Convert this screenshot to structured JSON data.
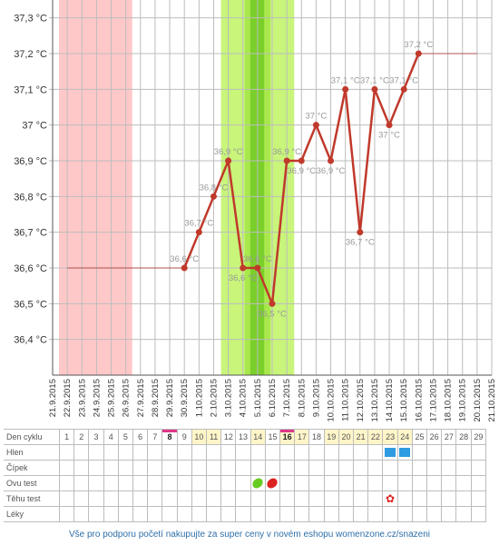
{
  "chart_data": {
    "type": "line",
    "ylim": [
      36.3,
      37.35
    ],
    "y_ticks": [
      36.4,
      36.5,
      36.6,
      36.7,
      36.8,
      36.9,
      37.0,
      37.1,
      37.2,
      37.3
    ],
    "y_tick_labels": [
      "36,4 °C",
      "36,5 °C",
      "36,6 °C",
      "36,7 °C",
      "36,8 °C",
      "36,9 °C",
      "37 °C",
      "37,1 °C",
      "37,2 °C",
      "37,3 °C"
    ],
    "x": [
      "21.9.2015",
      "22.9.2015",
      "23.9.2015",
      "24.9.2015",
      "25.9.2015",
      "26.9.2015",
      "27.9.2015",
      "28.9.2015",
      "29.9.2015",
      "30.9.2015",
      "1.10.2015",
      "2.10.2015",
      "3.10.2015",
      "4.10.2015",
      "5.10.2015",
      "6.10.2015",
      "7.10.2015",
      "8.10.2015",
      "9.10.2015",
      "10.10.2015",
      "11.10.2015",
      "12.10.2015",
      "13.10.2015",
      "14.10.2015",
      "15.10.2015",
      "16.10.2015",
      "17.10.2015",
      "18.10.2015",
      "19.10.2015",
      "20.10.2015",
      "21.10.2015"
    ],
    "series": [
      {
        "values": [
          null,
          null,
          null,
          null,
          null,
          null,
          null,
          null,
          null,
          36.6,
          36.7,
          36.8,
          36.9,
          36.6,
          36.6,
          36.5,
          36.9,
          36.9,
          37.0,
          36.9,
          37.1,
          36.7,
          37.1,
          37.0,
          37.1,
          37.2,
          null,
          null,
          null,
          null,
          null
        ],
        "point_labels": [
          null,
          null,
          null,
          null,
          null,
          null,
          null,
          null,
          null,
          "36,6 °C",
          "36,7 °C",
          "36,8 °C",
          "36,9 °C",
          "36,6 °C",
          "36,6 °C",
          "36,5 °C",
          "36,9 °C",
          "36,9 °C",
          "37 °C",
          "36,9 °C",
          "37,1 °C",
          "36,7 °C",
          "37,1 °C",
          "37 °C",
          "37,1 °C",
          "37,2 °C",
          null,
          null,
          null,
          null,
          null
        ],
        "color": "#c0392b"
      }
    ],
    "baseline_before": {
      "value": 36.6,
      "from": "22.9.2015",
      "to": "30.9.2015"
    },
    "baseline_after": {
      "value": 37.2,
      "from": "16.10.2015",
      "to": "20.10.2015"
    },
    "menstruation_band": {
      "from": "21.9.2015",
      "to": "26.9.2015",
      "color": "#ffc8c8"
    },
    "fertile_band": {
      "from": "3.10.2015",
      "to": "8.10.2015",
      "color": "#c8f57a"
    },
    "ovulation_band": {
      "from": "4.10.2015",
      "to": "6.10.2015",
      "color": "#a8e84c"
    },
    "ovulation_peak_band": {
      "from": "5.10.2015",
      "to": "6.10.2015",
      "color": "#7acf2a"
    },
    "grid": true
  },
  "table": {
    "rows": [
      {
        "label": "Den cyklu"
      },
      {
        "label": "Hlen"
      },
      {
        "label": "Čípek"
      },
      {
        "label": "Ovu test"
      },
      {
        "label": "Těhu test"
      },
      {
        "label": "Léky"
      }
    ],
    "days": [
      "1",
      "2",
      "3",
      "4",
      "5",
      "6",
      "7",
      "8",
      "9",
      "10",
      "11",
      "12",
      "13",
      "14",
      "15",
      "16",
      "17",
      "18",
      "19",
      "20",
      "21",
      "22",
      "23",
      "24",
      "25",
      "26",
      "27",
      "28",
      "29"
    ],
    "highlighted_days": [
      "10",
      "11",
      "14",
      "16",
      "17",
      "19",
      "20",
      "21",
      "22",
      "23",
      "24"
    ],
    "marked_days": [
      "8",
      "16"
    ],
    "hlen_markers": [
      "23",
      "24"
    ],
    "ovu_markers": [
      {
        "day": "14",
        "color": "#66cc22"
      },
      {
        "day": "15",
        "color": "#dd2222"
      }
    ],
    "tehu_markers": [
      "23"
    ]
  },
  "footer_text": "Vše pro podporu početí nakupujte za super ceny v novém eshopu womenzone.cz/snazeni"
}
